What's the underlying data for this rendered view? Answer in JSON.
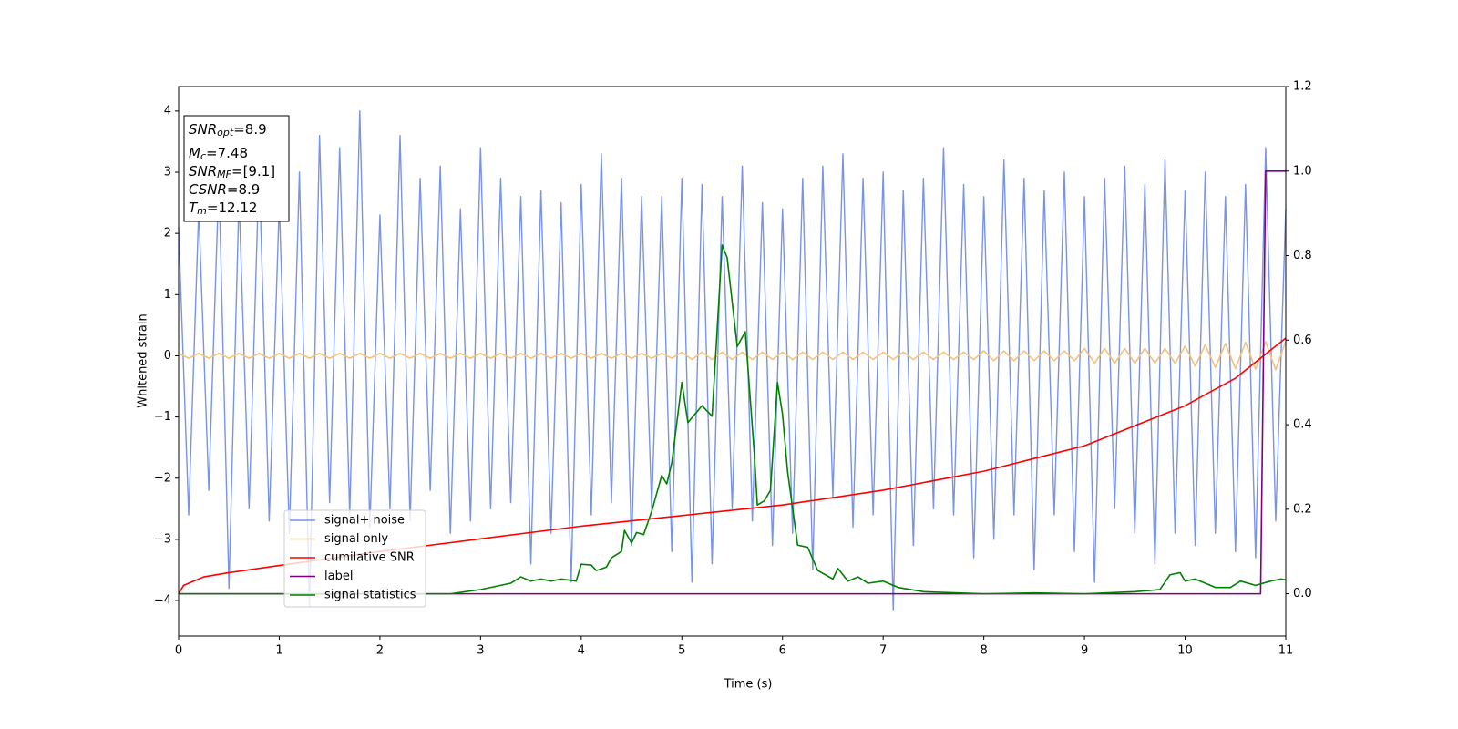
{
  "chart_data": {
    "type": "line",
    "xlabel": "Time (s)",
    "ylabel": "Whitened strain",
    "xlim": [
      0,
      11
    ],
    "xticks": [
      0,
      1,
      2,
      3,
      4,
      5,
      6,
      7,
      8,
      9,
      10,
      11
    ],
    "ylim": [
      -4.58,
      4.4
    ],
    "yticks": [
      {
        "value": -4,
        "label": "−4"
      },
      {
        "value": -3,
        "label": "−3"
      },
      {
        "value": -2,
        "label": "−2"
      },
      {
        "value": -1,
        "label": "−1"
      },
      0,
      1,
      2,
      3,
      4
    ],
    "y2lim": [
      -0.1,
      1.2
    ],
    "y2ticks": [
      {
        "value": 0,
        "label": "0.0"
      },
      {
        "value": 0.2,
        "label": "0.2"
      },
      {
        "value": 0.4,
        "label": "0.4"
      },
      {
        "value": 0.6,
        "label": "0.6"
      },
      {
        "value": 0.8,
        "label": "0.8"
      },
      {
        "value": 1,
        "label": "1.0"
      },
      {
        "value": 1.2,
        "label": "1.2"
      }
    ],
    "legend_position": "lower left",
    "annotations": [
      {
        "base": "SNR",
        "sub": "opt",
        "text": "=8.9"
      },
      {
        "base": "M",
        "sub": "c",
        "text": "=7.48"
      },
      {
        "base": "SNR",
        "sub": "MF",
        "text": "=[9.1]"
      },
      {
        "base": "CSNR",
        "text": "=8.9"
      },
      {
        "base": "T",
        "sub": "m",
        "text": "=12.12"
      }
    ],
    "x": [
      0,
      0.1,
      0.2,
      0.3,
      0.4,
      0.5,
      0.6,
      0.7,
      0.8,
      0.9,
      1,
      1.1,
      1.2,
      1.3,
      1.4,
      1.5,
      1.6,
      1.7,
      1.8,
      1.9,
      2,
      2.1,
      2.2,
      2.3,
      2.4,
      2.5,
      2.6,
      2.7,
      2.8,
      2.9,
      3,
      3.1,
      3.2,
      3.3,
      3.4,
      3.5,
      3.6,
      3.7,
      3.8,
      3.9,
      4,
      4.1,
      4.2,
      4.3,
      4.4,
      4.5,
      4.6,
      4.7,
      4.8,
      4.9,
      5,
      5.1,
      5.2,
      5.3,
      5.4,
      5.5,
      5.6,
      5.7,
      5.8,
      5.9,
      6,
      6.1,
      6.2,
      6.3,
      6.4,
      6.5,
      6.6,
      6.7,
      6.8,
      6.9,
      7,
      7.1,
      7.2,
      7.3,
      7.4,
      7.5,
      7.6,
      7.7,
      7.8,
      7.9,
      8,
      8.1,
      8.2,
      8.3,
      8.4,
      8.5,
      8.6,
      8.7,
      8.8,
      8.9,
      9,
      9.1,
      9.2,
      9.3,
      9.4,
      9.5,
      9.6,
      9.7,
      9.8,
      9.9,
      10,
      10.1,
      10.2,
      10.3,
      10.4,
      10.5,
      10.6,
      10.7,
      10.8,
      10.9,
      11
    ],
    "series": [
      {
        "name": "signal+ noise",
        "color": "#7893e8",
        "values": [
          2.1,
          -2.6,
          2.4,
          -2.2,
          2.9,
          -3.8,
          2.6,
          -2.5,
          3.1,
          -2.7,
          2.5,
          -2.9,
          3.0,
          -4.1,
          3.6,
          -2.4,
          3.4,
          -2.6,
          4.0,
          -2.8,
          2.3,
          -2.5,
          3.6,
          -2.7,
          2.9,
          -2.2,
          3.1,
          -2.9,
          2.4,
          -2.7,
          3.4,
          -2.5,
          2.9,
          -2.4,
          2.6,
          -3.4,
          2.7,
          -2.9,
          2.5,
          -3.7,
          2.8,
          -2.6,
          3.3,
          -2.4,
          2.9,
          -3.1,
          2.6,
          -2.5,
          2.6,
          -3.2,
          2.9,
          -3.7,
          2.8,
          -3.4,
          2.6,
          -2.5,
          3.1,
          -2.7,
          2.5,
          -3.1,
          2.4,
          -2.9,
          2.9,
          -3.5,
          3.1,
          -2.3,
          3.3,
          -2.8,
          2.9,
          -2.6,
          3.0,
          -4.15,
          2.7,
          -3.1,
          2.9,
          -2.5,
          3.4,
          -2.6,
          2.8,
          -3.3,
          2.6,
          -3.0,
          3.2,
          -2.6,
          2.9,
          -3.5,
          2.7,
          -2.6,
          3.0,
          -3.2,
          2.6,
          -3.7,
          2.9,
          -2.5,
          3.1,
          -2.9,
          2.8,
          -3.4,
          3.2,
          -2.9,
          2.7,
          -3.1,
          3.0,
          -2.9,
          2.6,
          -3.2,
          2.8,
          -3.3,
          3.4,
          -2.7,
          2.4
        ]
      },
      {
        "name": "signal only",
        "color": "#f5c27a",
        "values": [
          0.04,
          -0.04,
          0.04,
          -0.04,
          0.04,
          -0.04,
          0.04,
          -0.04,
          0.04,
          -0.04,
          0.04,
          -0.04,
          0.04,
          -0.04,
          0.04,
          -0.04,
          0.04,
          -0.04,
          0.04,
          -0.04,
          0.04,
          -0.04,
          0.04,
          -0.04,
          0.04,
          -0.04,
          0.04,
          -0.04,
          0.04,
          -0.04,
          0.04,
          -0.04,
          0.04,
          -0.04,
          0.04,
          -0.04,
          0.04,
          -0.04,
          0.04,
          -0.04,
          0.04,
          -0.04,
          0.04,
          -0.04,
          0.04,
          -0.04,
          0.04,
          -0.04,
          0.04,
          -0.04,
          0.06,
          -0.06,
          0.06,
          -0.06,
          0.06,
          -0.06,
          0.06,
          -0.06,
          0.06,
          -0.06,
          0.06,
          -0.06,
          0.06,
          -0.06,
          0.06,
          -0.06,
          0.06,
          -0.06,
          0.06,
          -0.06,
          0.06,
          -0.06,
          0.06,
          -0.06,
          0.06,
          -0.06,
          0.06,
          -0.06,
          0.06,
          -0.06,
          0.08,
          -0.08,
          0.08,
          -0.08,
          0.08,
          -0.08,
          0.08,
          -0.08,
          0.08,
          -0.08,
          0.12,
          -0.12,
          0.12,
          -0.12,
          0.12,
          -0.12,
          0.12,
          -0.12,
          0.12,
          -0.12,
          0.16,
          -0.17,
          0.18,
          -0.19,
          0.2,
          -0.21,
          0.22,
          -0.22,
          0.23,
          -0.23,
          0.24
        ]
      },
      {
        "name": "cumilative SNR",
        "color": "#ff0000",
        "axis": "y2",
        "x": [
          0,
          0.05,
          0.25,
          0.5,
          1,
          2,
          3,
          4,
          5,
          6,
          7,
          8,
          9,
          10,
          10.5,
          11
        ],
        "values": [
          0,
          0.02,
          0.04,
          0.05,
          0.067,
          0.1,
          0.13,
          0.16,
          0.185,
          0.21,
          0.245,
          0.29,
          0.35,
          0.445,
          0.51,
          0.605
        ]
      },
      {
        "name": "label",
        "color": "#800080",
        "axis": "y2",
        "x": [
          0,
          10.75,
          10.8,
          11
        ],
        "values": [
          0,
          0,
          1,
          1
        ]
      },
      {
        "name": "signal statistics",
        "color": "#008000",
        "axis": "y2",
        "x": [
          0,
          2.7,
          3,
          3.3,
          3.4,
          3.5,
          3.6,
          3.7,
          3.8,
          3.95,
          4,
          4.1,
          4.15,
          4.25,
          4.3,
          4.4,
          4.43,
          4.5,
          4.55,
          4.62,
          4.7,
          4.8,
          4.85,
          4.9,
          5,
          5.06,
          5.2,
          5.3,
          5.4,
          5.45,
          5.55,
          5.63,
          5.72,
          5.75,
          5.82,
          5.88,
          5.95,
          6,
          6.05,
          6.15,
          6.25,
          6.35,
          6.5,
          6.55,
          6.65,
          6.75,
          6.85,
          7,
          7.15,
          7.4,
          8,
          8.5,
          9,
          9.5,
          9.75,
          9.85,
          9.95,
          10,
          10.1,
          10.3,
          10.45,
          10.55,
          10.7,
          10.85,
          10.95,
          11
        ],
        "values": [
          0,
          0,
          0.01,
          0.025,
          0.04,
          0.03,
          0.035,
          0.03,
          0.035,
          0.03,
          0.07,
          0.068,
          0.055,
          0.063,
          0.085,
          0.1,
          0.15,
          0.12,
          0.145,
          0.14,
          0.195,
          0.28,
          0.26,
          0.31,
          0.5,
          0.405,
          0.445,
          0.42,
          0.825,
          0.795,
          0.585,
          0.62,
          0.33,
          0.21,
          0.22,
          0.245,
          0.5,
          0.425,
          0.29,
          0.115,
          0.11,
          0.055,
          0.035,
          0.06,
          0.03,
          0.04,
          0.025,
          0.03,
          0.015,
          0.005,
          0,
          0.002,
          0,
          0.005,
          0.01,
          0.045,
          0.05,
          0.03,
          0.035,
          0.015,
          0.015,
          0.03,
          0.02,
          0.03,
          0.035,
          0.033
        ]
      }
    ]
  }
}
